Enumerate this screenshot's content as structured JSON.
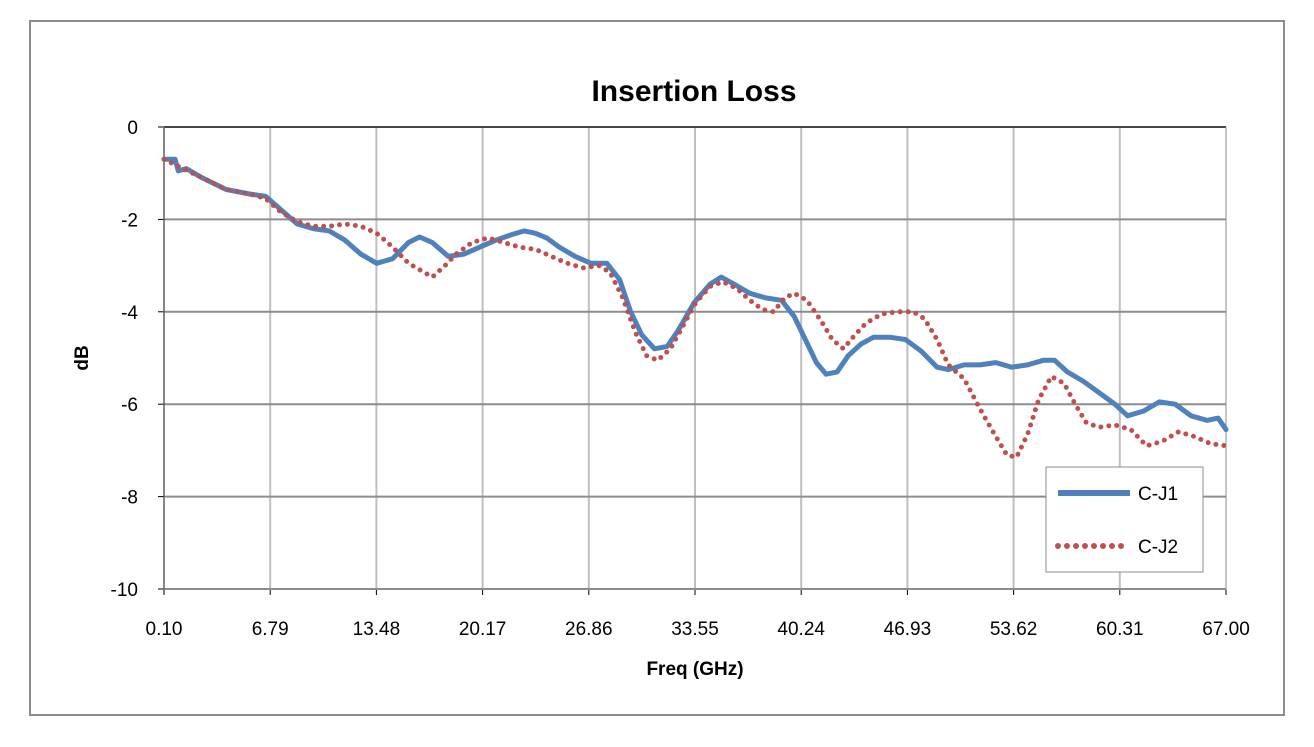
{
  "chart_data": {
    "type": "line",
    "title": "Insertion Loss",
    "xlabel": "Freq (GHz)",
    "ylabel": "dB",
    "xlim": [
      0.1,
      67.0
    ],
    "ylim": [
      -10,
      0
    ],
    "x_ticks": [
      "0.10",
      "6.79",
      "13.48",
      "20.17",
      "26.86",
      "33.55",
      "40.24",
      "46.93",
      "53.62",
      "60.31",
      "67.00"
    ],
    "y_ticks": [
      "0",
      "-2",
      "-4",
      "-6",
      "-8",
      "-10"
    ],
    "grid": true,
    "legend_position": "bottom-right",
    "series": [
      {
        "name": "C-J1",
        "color": "#4F81BD",
        "style": "solid",
        "points": [
          [
            0.1,
            -0.7
          ],
          [
            0.8,
            -0.7
          ],
          [
            1.0,
            -0.95
          ],
          [
            1.5,
            -0.9
          ],
          [
            2.5,
            -1.1
          ],
          [
            4.0,
            -1.35
          ],
          [
            5.5,
            -1.45
          ],
          [
            6.5,
            -1.5
          ],
          [
            7.5,
            -1.8
          ],
          [
            8.5,
            -2.1
          ],
          [
            9.5,
            -2.2
          ],
          [
            10.5,
            -2.25
          ],
          [
            11.5,
            -2.45
          ],
          [
            12.5,
            -2.75
          ],
          [
            13.5,
            -2.95
          ],
          [
            14.5,
            -2.85
          ],
          [
            15.5,
            -2.5
          ],
          [
            16.2,
            -2.38
          ],
          [
            17.0,
            -2.5
          ],
          [
            18.0,
            -2.8
          ],
          [
            19.0,
            -2.75
          ],
          [
            20.0,
            -2.6
          ],
          [
            21.0,
            -2.45
          ],
          [
            22.0,
            -2.33
          ],
          [
            22.8,
            -2.25
          ],
          [
            23.5,
            -2.3
          ],
          [
            24.2,
            -2.4
          ],
          [
            25.0,
            -2.6
          ],
          [
            26.0,
            -2.8
          ],
          [
            27.0,
            -2.95
          ],
          [
            28.0,
            -2.95
          ],
          [
            28.8,
            -3.3
          ],
          [
            29.5,
            -4.0
          ],
          [
            30.2,
            -4.5
          ],
          [
            31.0,
            -4.8
          ],
          [
            31.8,
            -4.75
          ],
          [
            32.5,
            -4.4
          ],
          [
            33.5,
            -3.8
          ],
          [
            34.5,
            -3.4
          ],
          [
            35.2,
            -3.25
          ],
          [
            36.0,
            -3.4
          ],
          [
            37.0,
            -3.6
          ],
          [
            38.0,
            -3.7
          ],
          [
            39.0,
            -3.75
          ],
          [
            39.8,
            -4.1
          ],
          [
            40.5,
            -4.6
          ],
          [
            41.2,
            -5.1
          ],
          [
            41.8,
            -5.35
          ],
          [
            42.5,
            -5.3
          ],
          [
            43.2,
            -4.95
          ],
          [
            44.0,
            -4.7
          ],
          [
            44.8,
            -4.55
          ],
          [
            45.8,
            -4.55
          ],
          [
            46.8,
            -4.6
          ],
          [
            47.8,
            -4.85
          ],
          [
            48.8,
            -5.2
          ],
          [
            49.5,
            -5.25
          ],
          [
            50.5,
            -5.15
          ],
          [
            51.5,
            -5.15
          ],
          [
            52.5,
            -5.1
          ],
          [
            53.5,
            -5.2
          ],
          [
            54.5,
            -5.15
          ],
          [
            55.5,
            -5.05
          ],
          [
            56.2,
            -5.05
          ],
          [
            57.0,
            -5.3
          ],
          [
            58.0,
            -5.5
          ],
          [
            59.0,
            -5.75
          ],
          [
            60.0,
            -6.0
          ],
          [
            60.8,
            -6.25
          ],
          [
            61.8,
            -6.15
          ],
          [
            62.8,
            -5.95
          ],
          [
            63.8,
            -6.0
          ],
          [
            64.8,
            -6.25
          ],
          [
            65.8,
            -6.35
          ],
          [
            66.5,
            -6.3
          ],
          [
            67.0,
            -6.55
          ]
        ]
      },
      {
        "name": "C-J2",
        "color": "#C0504D",
        "style": "dotted",
        "points": [
          [
            0.1,
            -0.7
          ],
          [
            1.0,
            -0.85
          ],
          [
            2.5,
            -1.1
          ],
          [
            4.0,
            -1.35
          ],
          [
            5.5,
            -1.45
          ],
          [
            6.5,
            -1.55
          ],
          [
            7.5,
            -1.85
          ],
          [
            8.5,
            -2.05
          ],
          [
            9.5,
            -2.15
          ],
          [
            10.5,
            -2.15
          ],
          [
            11.5,
            -2.1
          ],
          [
            12.5,
            -2.15
          ],
          [
            13.5,
            -2.3
          ],
          [
            14.5,
            -2.6
          ],
          [
            15.5,
            -2.95
          ],
          [
            16.5,
            -3.15
          ],
          [
            17.0,
            -3.25
          ],
          [
            17.8,
            -3.0
          ],
          [
            18.5,
            -2.75
          ],
          [
            19.5,
            -2.5
          ],
          [
            20.5,
            -2.4
          ],
          [
            21.5,
            -2.5
          ],
          [
            22.5,
            -2.6
          ],
          [
            23.5,
            -2.65
          ],
          [
            24.5,
            -2.8
          ],
          [
            25.5,
            -2.95
          ],
          [
            26.5,
            -3.05
          ],
          [
            27.5,
            -3.0
          ],
          [
            28.2,
            -3.15
          ],
          [
            29.0,
            -3.7
          ],
          [
            29.8,
            -4.45
          ],
          [
            30.5,
            -4.95
          ],
          [
            31.2,
            -5.05
          ],
          [
            32.0,
            -4.8
          ],
          [
            32.8,
            -4.3
          ],
          [
            33.6,
            -3.8
          ],
          [
            34.5,
            -3.45
          ],
          [
            35.3,
            -3.35
          ],
          [
            36.2,
            -3.5
          ],
          [
            37.0,
            -3.75
          ],
          [
            37.8,
            -3.95
          ],
          [
            38.5,
            -4.0
          ],
          [
            39.2,
            -3.7
          ],
          [
            39.8,
            -3.6
          ],
          [
            40.6,
            -3.75
          ],
          [
            41.5,
            -4.2
          ],
          [
            42.2,
            -4.6
          ],
          [
            42.9,
            -4.8
          ],
          [
            43.5,
            -4.55
          ],
          [
            44.3,
            -4.25
          ],
          [
            45.3,
            -4.05
          ],
          [
            46.3,
            -4.0
          ],
          [
            47.3,
            -4.0
          ],
          [
            48.0,
            -4.15
          ],
          [
            48.8,
            -4.6
          ],
          [
            49.5,
            -5.15
          ],
          [
            50.5,
            -5.45
          ],
          [
            51.5,
            -6.1
          ],
          [
            52.5,
            -6.7
          ],
          [
            53.2,
            -7.1
          ],
          [
            53.8,
            -7.15
          ],
          [
            54.5,
            -6.65
          ],
          [
            55.2,
            -5.9
          ],
          [
            56.0,
            -5.4
          ],
          [
            56.8,
            -5.55
          ],
          [
            57.5,
            -6.0
          ],
          [
            58.2,
            -6.4
          ],
          [
            59.0,
            -6.5
          ],
          [
            60.0,
            -6.45
          ],
          [
            61.0,
            -6.55
          ],
          [
            62.0,
            -6.9
          ],
          [
            63.0,
            -6.8
          ],
          [
            64.0,
            -6.6
          ],
          [
            65.0,
            -6.7
          ],
          [
            66.0,
            -6.85
          ],
          [
            67.0,
            -6.9
          ]
        ]
      }
    ]
  }
}
